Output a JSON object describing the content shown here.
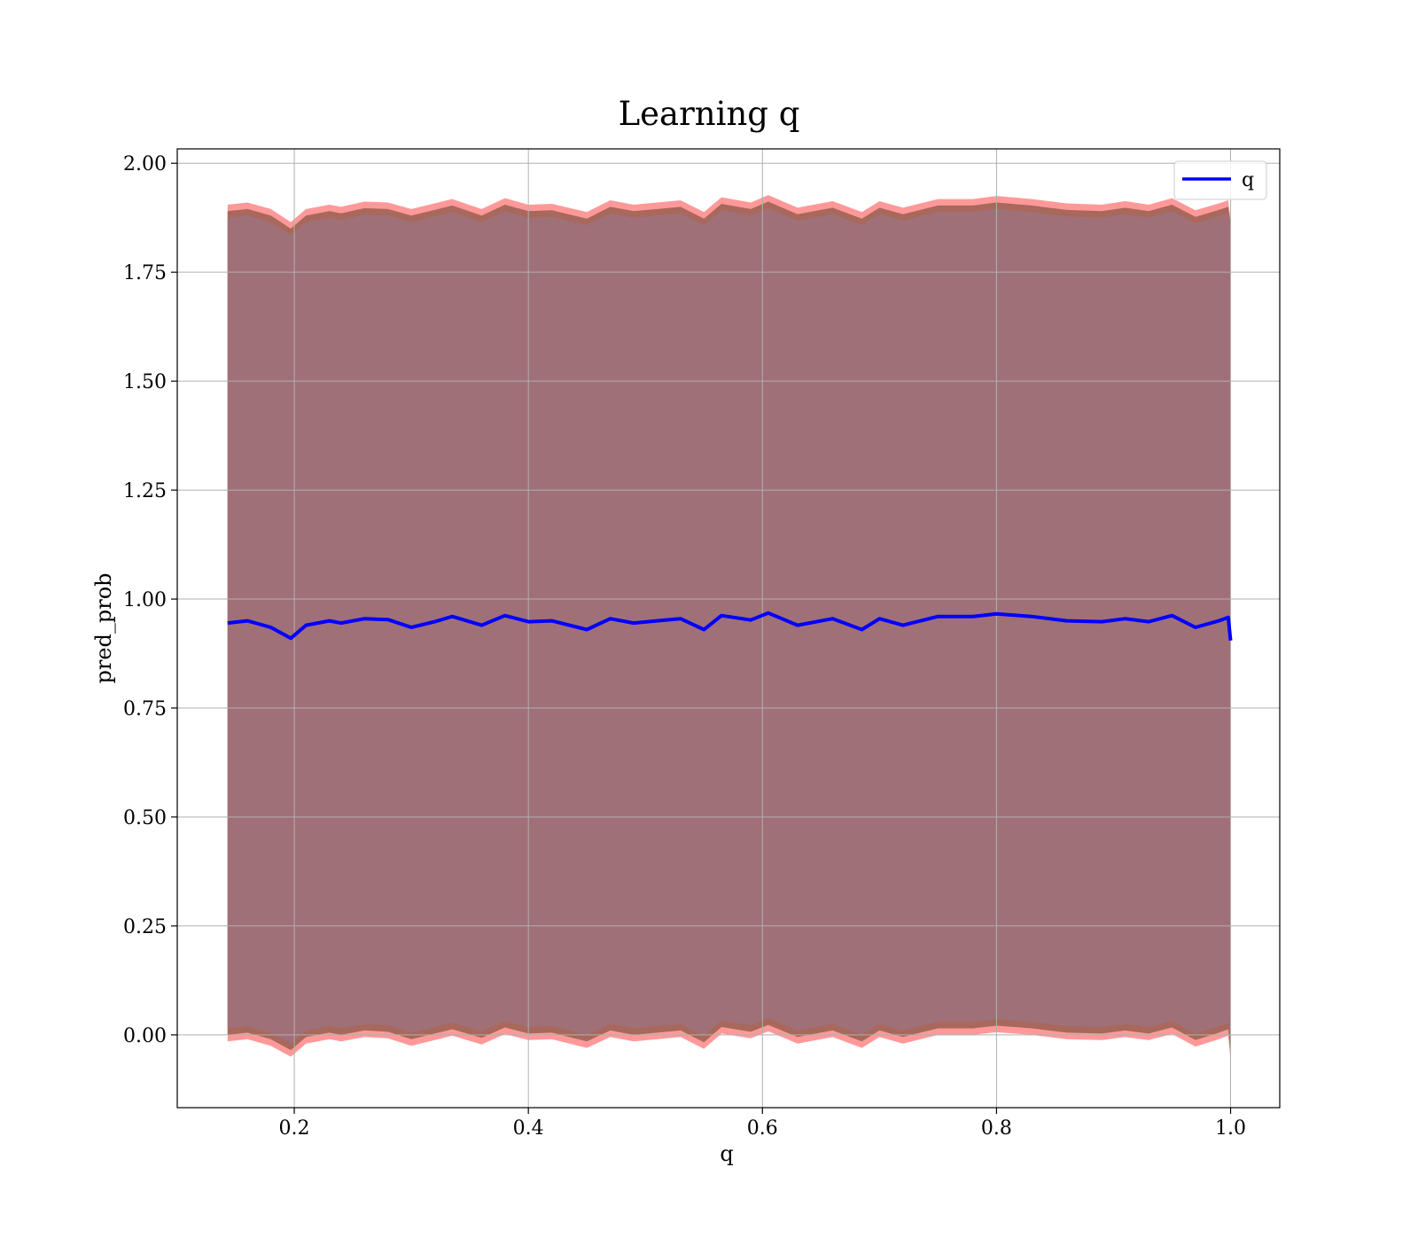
{
  "chart_data": {
    "type": "line",
    "title": "Learning q",
    "xlabel": "q",
    "ylabel": "pred_prob",
    "xlim": [
      0.1,
      1.042
    ],
    "ylim": [
      -0.167,
      2.033
    ],
    "x_ticks": [
      0.2,
      0.4,
      0.6,
      0.8,
      1.0
    ],
    "x_tick_labels": [
      "0.2",
      "0.4",
      "0.6",
      "0.8",
      "1.0"
    ],
    "y_ticks": [
      0.0,
      0.25,
      0.5,
      0.75,
      1.0,
      1.25,
      1.5,
      1.75,
      2.0
    ],
    "y_tick_labels": [
      "0.00",
      "0.25",
      "0.50",
      "0.75",
      "1.00",
      "1.25",
      "1.50",
      "1.75",
      "2.00"
    ],
    "grid": true,
    "legend_position": "top-right",
    "x": [
      0.143,
      0.16,
      0.18,
      0.197,
      0.21,
      0.23,
      0.24,
      0.26,
      0.28,
      0.3,
      0.32,
      0.335,
      0.36,
      0.38,
      0.4,
      0.42,
      0.45,
      0.47,
      0.49,
      0.51,
      0.53,
      0.55,
      0.565,
      0.59,
      0.605,
      0.63,
      0.66,
      0.685,
      0.7,
      0.72,
      0.75,
      0.78,
      0.8,
      0.83,
      0.86,
      0.89,
      0.91,
      0.93,
      0.95,
      0.97,
      0.99,
      0.998,
      1.0
    ],
    "series": [
      {
        "name": "q",
        "color": "#0000ff",
        "values": [
          0.945,
          0.95,
          0.935,
          0.91,
          0.94,
          0.95,
          0.945,
          0.955,
          0.953,
          0.935,
          0.948,
          0.96,
          0.94,
          0.962,
          0.948,
          0.95,
          0.93,
          0.955,
          0.945,
          0.95,
          0.955,
          0.93,
          0.962,
          0.952,
          0.968,
          0.94,
          0.955,
          0.93,
          0.955,
          0.94,
          0.96,
          0.96,
          0.966,
          0.96,
          0.95,
          0.948,
          0.955,
          0.948,
          0.962,
          0.935,
          0.95,
          0.958,
          0.905
        ]
      }
    ],
    "bands": [
      {
        "color": "#ff9999",
        "upper": [
          1.905,
          1.91,
          1.895,
          1.865,
          1.895,
          1.905,
          1.9,
          1.912,
          1.91,
          1.895,
          1.908,
          1.918,
          1.895,
          1.92,
          1.905,
          1.907,
          1.888,
          1.915,
          1.905,
          1.91,
          1.915,
          1.888,
          1.922,
          1.91,
          1.927,
          1.898,
          1.913,
          1.888,
          1.913,
          1.898,
          1.918,
          1.918,
          1.925,
          1.918,
          1.908,
          1.905,
          1.913,
          1.905,
          1.92,
          1.892,
          1.908,
          1.915,
          1.87
        ],
        "lower": [
          -0.015,
          -0.01,
          -0.025,
          -0.05,
          -0.02,
          -0.01,
          -0.015,
          -0.005,
          -0.008,
          -0.025,
          -0.012,
          -0.002,
          -0.022,
          0.002,
          -0.012,
          -0.01,
          -0.03,
          -0.005,
          -0.015,
          -0.01,
          -0.005,
          -0.032,
          0.003,
          -0.008,
          0.008,
          -0.02,
          -0.005,
          -0.03,
          -0.005,
          -0.02,
          0.0,
          0.0,
          0.006,
          0.0,
          -0.01,
          -0.012,
          -0.005,
          -0.012,
          0.002,
          -0.027,
          -0.01,
          -0.002,
          -0.06
        ]
      },
      {
        "color": "#a8685c",
        "upper": [
          1.89,
          1.895,
          1.88,
          1.85,
          1.88,
          1.89,
          1.885,
          1.897,
          1.895,
          1.88,
          1.893,
          1.903,
          1.88,
          1.905,
          1.89,
          1.892,
          1.873,
          1.9,
          1.89,
          1.895,
          1.9,
          1.873,
          1.907,
          1.895,
          1.912,
          1.883,
          1.898,
          1.873,
          1.898,
          1.883,
          1.903,
          1.903,
          1.91,
          1.903,
          1.893,
          1.89,
          1.898,
          1.89,
          1.905,
          1.877,
          1.893,
          1.9,
          1.86
        ],
        "lower": [
          0.0,
          0.005,
          -0.01,
          -0.035,
          -0.005,
          0.005,
          0.0,
          0.01,
          0.007,
          -0.01,
          0.003,
          0.013,
          -0.007,
          0.017,
          0.003,
          0.005,
          -0.015,
          0.01,
          0.0,
          0.005,
          0.01,
          -0.017,
          0.018,
          0.007,
          0.023,
          -0.005,
          0.01,
          -0.015,
          0.01,
          -0.005,
          0.015,
          0.015,
          0.021,
          0.015,
          0.005,
          0.003,
          0.01,
          0.003,
          0.017,
          -0.012,
          0.005,
          0.013,
          -0.045
        ]
      },
      {
        "color": "#a07078",
        "upper": [
          1.875,
          1.88,
          1.865,
          1.835,
          1.865,
          1.875,
          1.87,
          1.882,
          1.88,
          1.865,
          1.878,
          1.888,
          1.865,
          1.89,
          1.875,
          1.877,
          1.858,
          1.885,
          1.875,
          1.88,
          1.885,
          1.858,
          1.892,
          1.88,
          1.897,
          1.868,
          1.883,
          1.858,
          1.883,
          1.868,
          1.888,
          1.888,
          1.895,
          1.888,
          1.878,
          1.875,
          1.883,
          1.875,
          1.89,
          1.862,
          1.878,
          1.885,
          1.845
        ],
        "lower": [
          0.015,
          0.02,
          0.005,
          -0.02,
          0.01,
          0.02,
          0.015,
          0.025,
          0.022,
          0.005,
          0.018,
          0.028,
          0.008,
          0.032,
          0.018,
          0.02,
          0.0,
          0.025,
          0.015,
          0.02,
          0.025,
          -0.002,
          0.033,
          0.022,
          0.038,
          0.01,
          0.025,
          0.0,
          0.025,
          0.01,
          0.03,
          0.03,
          0.036,
          0.03,
          0.02,
          0.018,
          0.025,
          0.018,
          0.032,
          0.003,
          0.02,
          0.028,
          -0.03
        ]
      }
    ]
  }
}
